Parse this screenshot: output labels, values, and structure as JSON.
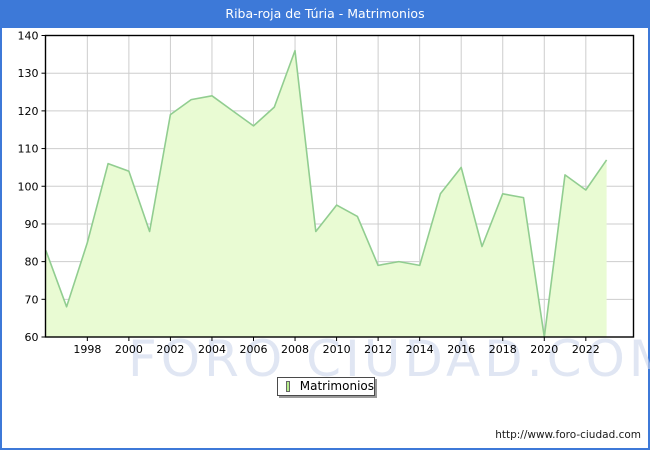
{
  "titlebar": {
    "title": "Riba-roja de Túria - Matrimonios"
  },
  "legend": {
    "label": "Matrimonios"
  },
  "footer": {
    "url": "http://www.foro-ciudad.com"
  },
  "watermark": {
    "text": "FORO CIUDAD.COM"
  },
  "colors": {
    "titlebar_bg": "#3d79d8",
    "frame_border": "#3d79d8",
    "plot_border": "#000000",
    "grid": "#cdcdcd",
    "area_fill": "#e9fbd3",
    "area_stroke": "#91cd90",
    "legend_swatch_fill": "#b6ee8b",
    "legend_swatch_border": "#666666",
    "watermark_color": "#ccd6ec",
    "axis_text": "#000000"
  },
  "chart_data": {
    "type": "area",
    "title": "Riba-roja de Túria - Matrimonios",
    "x": [
      1996,
      1997,
      1998,
      1999,
      2000,
      2001,
      2002,
      2003,
      2004,
      2005,
      2006,
      2007,
      2008,
      2009,
      2010,
      2011,
      2012,
      2013,
      2014,
      2015,
      2016,
      2017,
      2018,
      2019,
      2020,
      2021,
      2022,
      2023
    ],
    "series": [
      {
        "name": "Matrimonios",
        "values": [
          83,
          68,
          85,
          106,
          104,
          88,
          119,
          123,
          124,
          120,
          116,
          121,
          136,
          88,
          95,
          92,
          79,
          80,
          79,
          98,
          105,
          84,
          98,
          97,
          60,
          103,
          99,
          107
        ]
      }
    ],
    "ylim": [
      60,
      140
    ],
    "ytick_step": 10,
    "xticks_labeled": [
      1998,
      2000,
      2002,
      2004,
      2006,
      2008,
      2010,
      2012,
      2014,
      2016,
      2018,
      2020,
      2022
    ],
    "grid": true,
    "xlabel": "",
    "ylabel": "",
    "legend_position": "bottom-center"
  }
}
